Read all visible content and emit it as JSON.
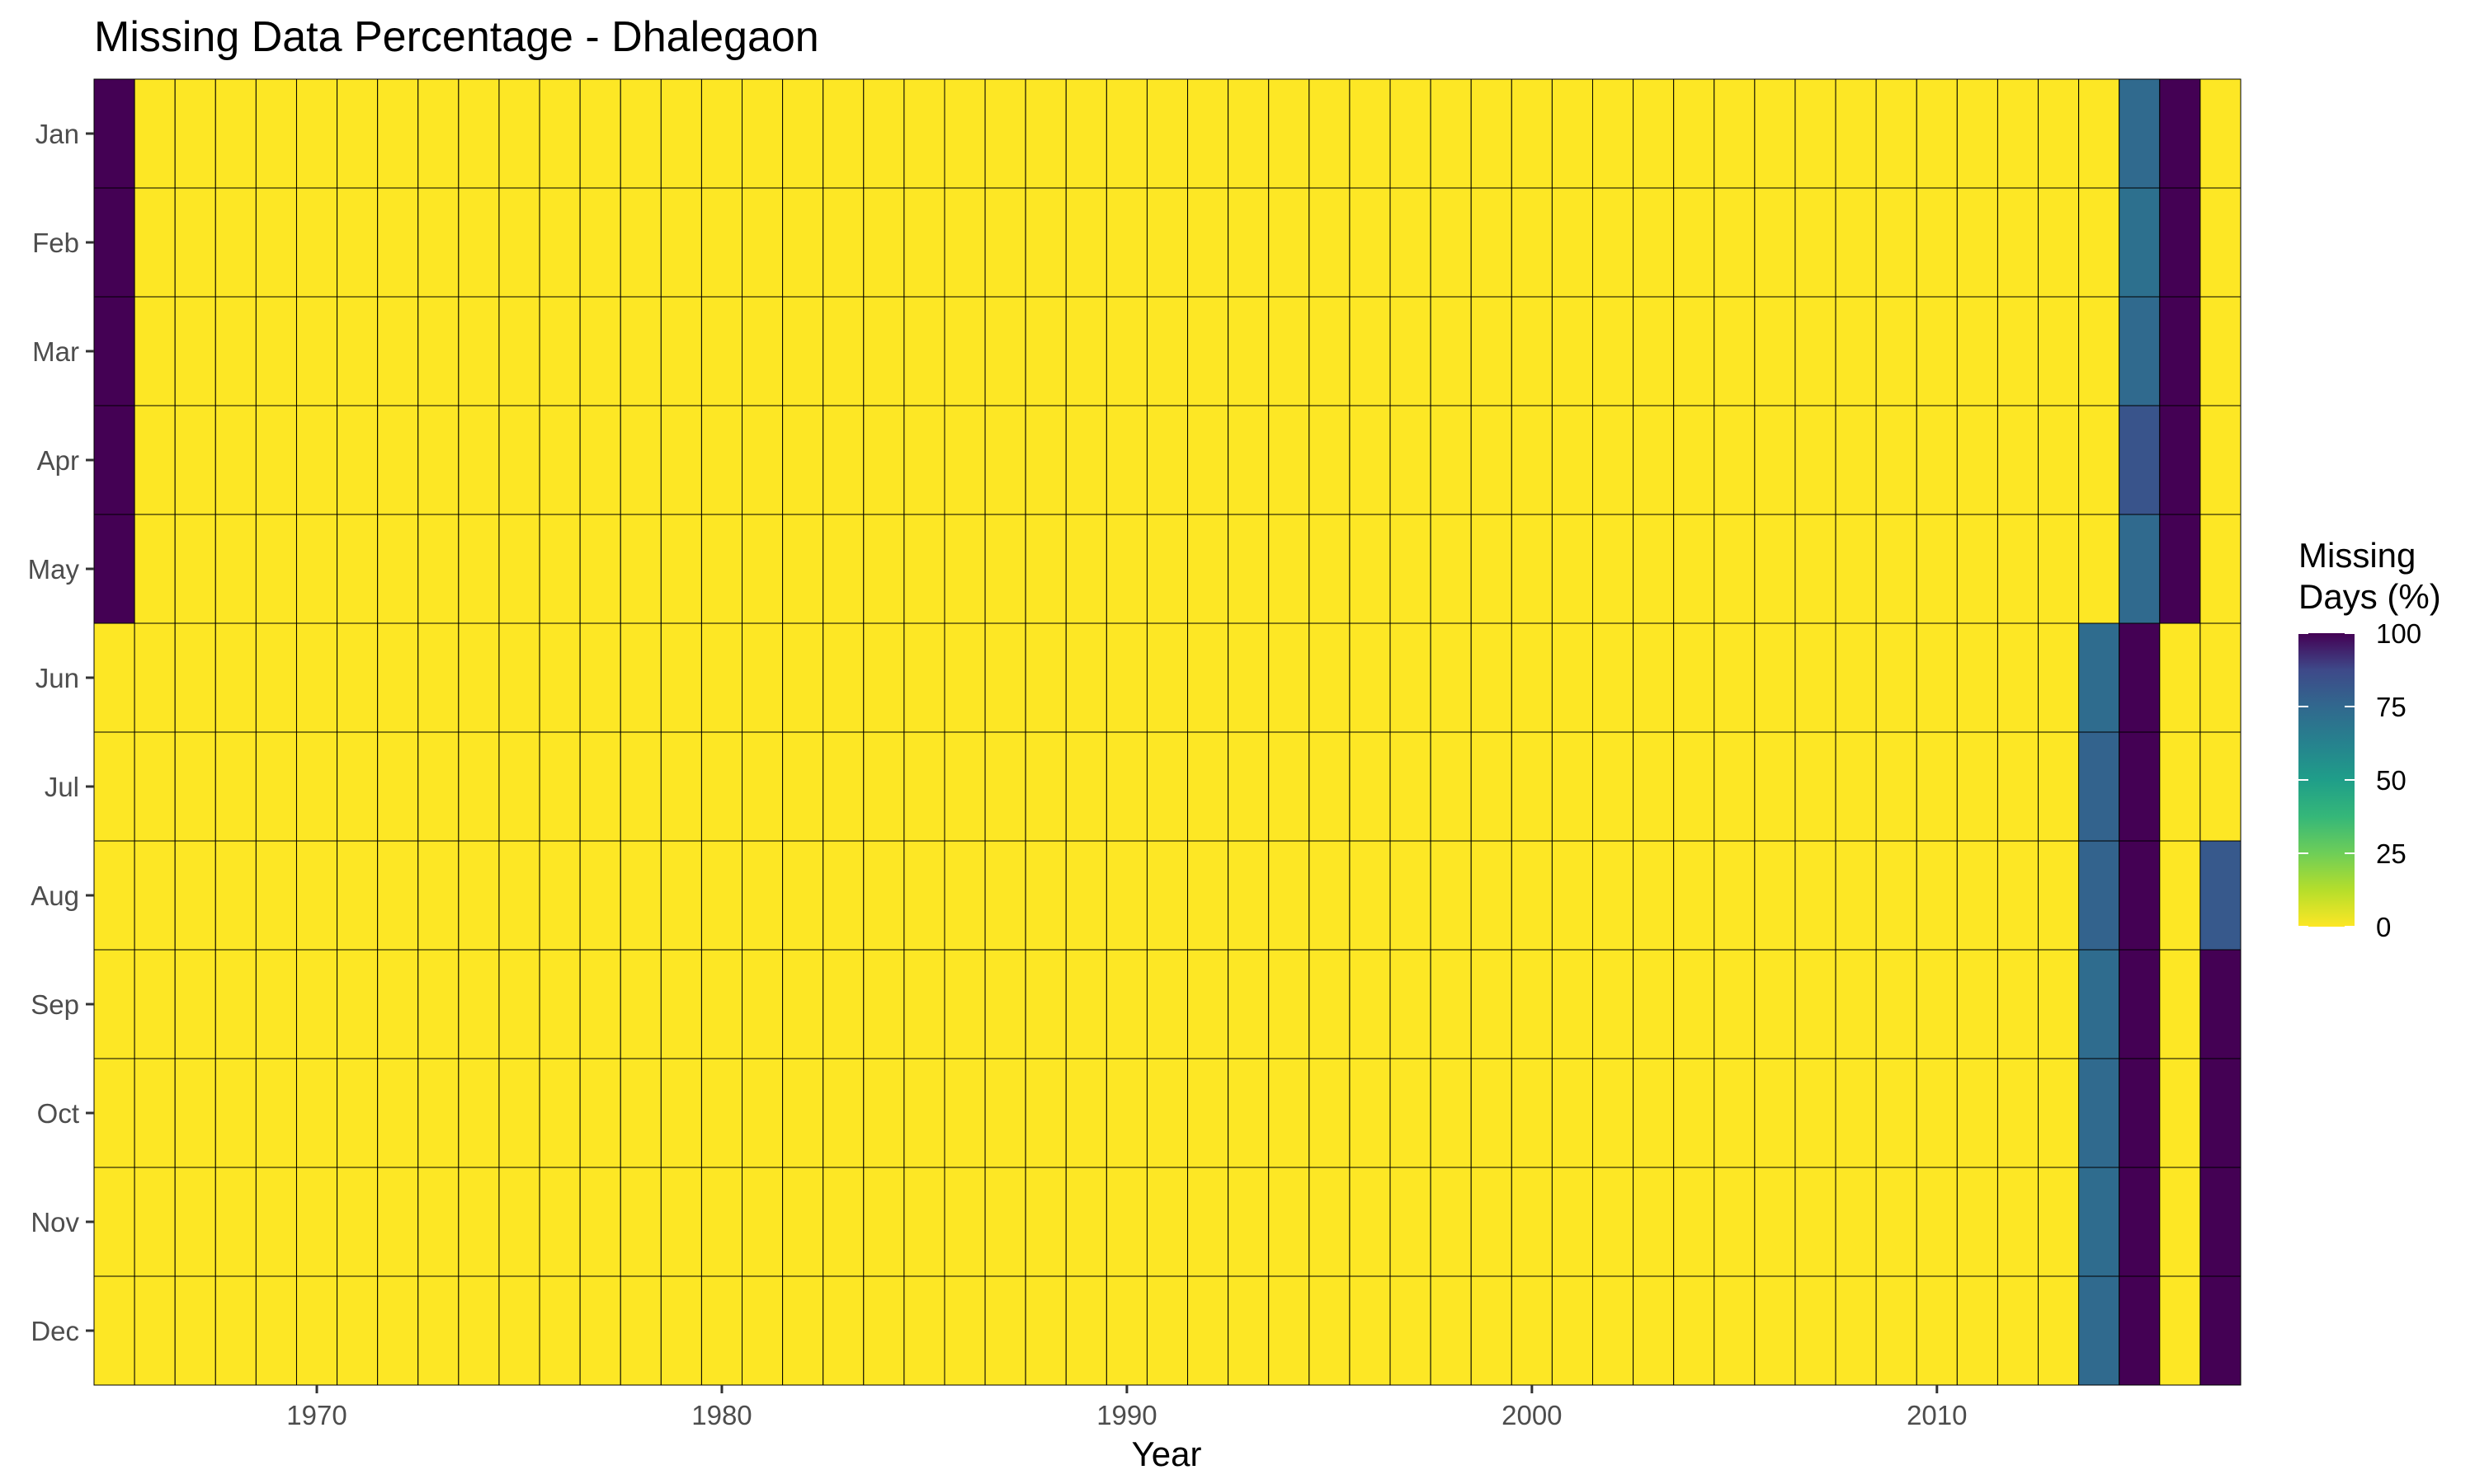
{
  "chart_data": {
    "type": "heatmap",
    "title": "Missing Data Percentage - Dhalegaon",
    "xlabel": "Year",
    "ylabel": "",
    "x_range": [
      1965,
      2017
    ],
    "x_ticks": [
      1970,
      1980,
      1990,
      2000,
      2010
    ],
    "y_categories": [
      "Jan",
      "Feb",
      "Mar",
      "Apr",
      "May",
      "Jun",
      "Jul",
      "Aug",
      "Sep",
      "Oct",
      "Nov",
      "Dec"
    ],
    "default_value": 0,
    "nonzero_cells": [
      {
        "year": 1965,
        "month": "Jan",
        "value": 100
      },
      {
        "year": 1965,
        "month": "Feb",
        "value": 100
      },
      {
        "year": 1965,
        "month": "Mar",
        "value": 100
      },
      {
        "year": 1965,
        "month": "Apr",
        "value": 100
      },
      {
        "year": 1965,
        "month": "May",
        "value": 100
      },
      {
        "year": 2014,
        "month": "Jun",
        "value": 73
      },
      {
        "year": 2014,
        "month": "Jul",
        "value": 77
      },
      {
        "year": 2014,
        "month": "Aug",
        "value": 77
      },
      {
        "year": 2014,
        "month": "Sep",
        "value": 73
      },
      {
        "year": 2014,
        "month": "Oct",
        "value": 74
      },
      {
        "year": 2014,
        "month": "Nov",
        "value": 73
      },
      {
        "year": 2014,
        "month": "Dec",
        "value": 74
      },
      {
        "year": 2015,
        "month": "Jan",
        "value": 74
      },
      {
        "year": 2015,
        "month": "Feb",
        "value": 71
      },
      {
        "year": 2015,
        "month": "Mar",
        "value": 74
      },
      {
        "year": 2015,
        "month": "Apr",
        "value": 83
      },
      {
        "year": 2015,
        "month": "May",
        "value": 74
      },
      {
        "year": 2015,
        "month": "Jun",
        "value": 100
      },
      {
        "year": 2015,
        "month": "Jul",
        "value": 100
      },
      {
        "year": 2015,
        "month": "Aug",
        "value": 100
      },
      {
        "year": 2015,
        "month": "Sep",
        "value": 100
      },
      {
        "year": 2015,
        "month": "Oct",
        "value": 100
      },
      {
        "year": 2015,
        "month": "Nov",
        "value": 100
      },
      {
        "year": 2015,
        "month": "Dec",
        "value": 100
      },
      {
        "year": 2016,
        "month": "Jan",
        "value": 100
      },
      {
        "year": 2016,
        "month": "Feb",
        "value": 100
      },
      {
        "year": 2016,
        "month": "Mar",
        "value": 100
      },
      {
        "year": 2016,
        "month": "Apr",
        "value": 100
      },
      {
        "year": 2016,
        "month": "May",
        "value": 100
      },
      {
        "year": 2017,
        "month": "Aug",
        "value": 81
      },
      {
        "year": 2017,
        "month": "Sep",
        "value": 100
      },
      {
        "year": 2017,
        "month": "Oct",
        "value": 100
      },
      {
        "year": 2017,
        "month": "Nov",
        "value": 100
      },
      {
        "year": 2017,
        "month": "Dec",
        "value": 100
      }
    ],
    "legend": {
      "title_lines": [
        "Missing",
        "Days (%)"
      ],
      "ticks": [
        100,
        75,
        50,
        25,
        0
      ],
      "placement": "right",
      "colormap": "viridis-reversed"
    },
    "grid": false
  }
}
